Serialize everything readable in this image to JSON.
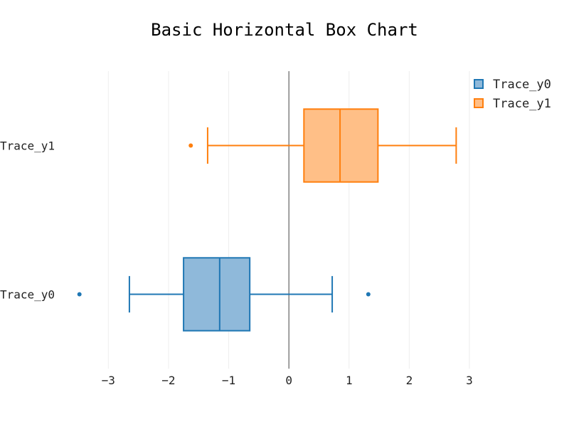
{
  "chart_data": {
    "type": "box",
    "orientation": "horizontal",
    "title": "Basic Horizontal Box Chart",
    "xlabel": "",
    "ylabel": "",
    "xlim": [
      -3.5,
      3.0
    ],
    "xticks": [
      -3,
      -2,
      -1,
      0,
      1,
      2,
      3
    ],
    "xtick_labels": [
      "−3",
      "−2",
      "−1",
      "0",
      "1",
      "2",
      "3"
    ],
    "grid": true,
    "zeroline": true,
    "legend": "top-right",
    "series": [
      {
        "name": "Trace_y0",
        "color": "#1f77b4",
        "fill": "#8fb9da",
        "whisker_low": -2.65,
        "q1": -1.75,
        "median": -1.15,
        "q3": -0.65,
        "whisker_high": 0.72,
        "outliers": [
          -3.48,
          1.32
        ]
      },
      {
        "name": "Trace_y1",
        "color": "#ff7f0e",
        "fill": "#ffbf87",
        "whisker_low": -1.35,
        "q1": 0.25,
        "median": 0.85,
        "q3": 1.48,
        "whisker_high": 2.78,
        "outliers": [
          -1.63
        ]
      }
    ]
  }
}
